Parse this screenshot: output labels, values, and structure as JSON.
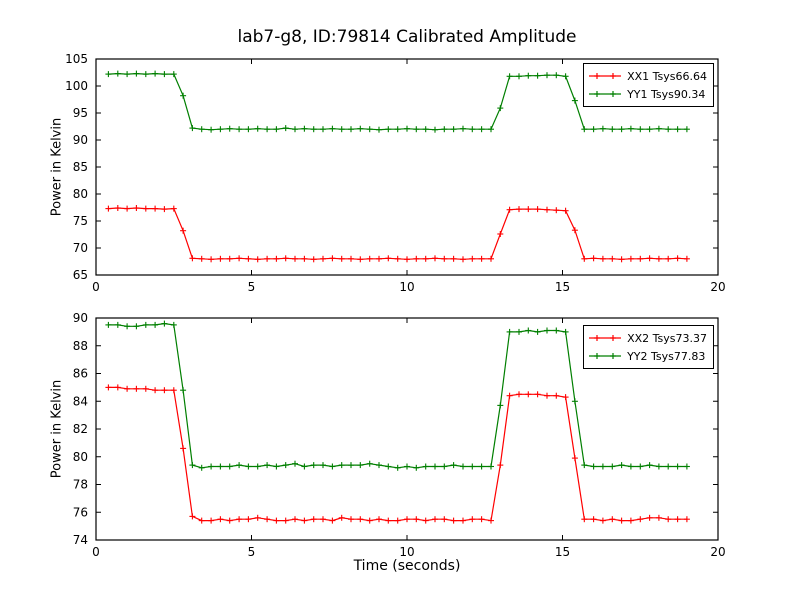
{
  "title": "lab7-g8, ID:79814 Calibrated Amplitude",
  "colors": {
    "red": "#ff0000",
    "green": "#007f00",
    "frame": "#000000",
    "background": "#ffffff"
  },
  "chart_data": [
    {
      "type": "line",
      "subplot": "top",
      "ylabel": "Power in Kelvin",
      "xlabel": "",
      "xlim": [
        0,
        20
      ],
      "ylim": [
        65,
        105
      ],
      "xticks": [
        0,
        5,
        10,
        15,
        20
      ],
      "yticks": [
        65,
        70,
        75,
        80,
        85,
        90,
        95,
        100,
        105
      ],
      "grid": false,
      "legend_position": "upper right",
      "x": [
        0.4,
        0.7,
        1.0,
        1.3,
        1.6,
        1.9,
        2.2,
        2.5,
        2.8,
        3.1,
        3.4,
        3.7,
        4.0,
        4.3,
        4.6,
        4.9,
        5.2,
        5.5,
        5.8,
        6.1,
        6.4,
        6.7,
        7.0,
        7.3,
        7.6,
        7.9,
        8.2,
        8.5,
        8.8,
        9.1,
        9.4,
        9.7,
        10.0,
        10.3,
        10.6,
        10.9,
        11.2,
        11.5,
        11.8,
        12.1,
        12.4,
        12.7,
        13.0,
        13.3,
        13.6,
        13.9,
        14.2,
        14.5,
        14.8,
        15.1,
        15.4,
        15.7,
        16.0,
        16.3,
        16.6,
        16.9,
        17.2,
        17.5,
        17.8,
        18.1,
        18.4,
        18.7,
        19.0
      ],
      "series": [
        {
          "name": "XX1",
          "label": "XX1 Tsys66.64",
          "color": "#ff0000",
          "marker": "+",
          "values": [
            77.3,
            77.4,
            77.3,
            77.4,
            77.3,
            77.3,
            77.2,
            77.3,
            73.2,
            68.1,
            68.0,
            67.9,
            68.0,
            68.0,
            68.1,
            68.0,
            67.9,
            68.0,
            68.0,
            68.1,
            68.0,
            68.0,
            67.9,
            68.0,
            68.1,
            68.0,
            68.0,
            67.9,
            68.0,
            68.0,
            68.1,
            68.0,
            67.9,
            68.0,
            68.0,
            68.1,
            68.0,
            68.0,
            67.9,
            68.0,
            68.0,
            68.0,
            72.6,
            77.1,
            77.2,
            77.2,
            77.2,
            77.1,
            77.0,
            76.9,
            73.3,
            68.0,
            68.1,
            68.0,
            68.0,
            67.9,
            68.0,
            68.0,
            68.1,
            68.0,
            68.0,
            68.1,
            68.0
          ]
        },
        {
          "name": "YY1",
          "label": "YY1 Tsys90.34",
          "color": "#007f00",
          "marker": "+",
          "values": [
            102.2,
            102.3,
            102.2,
            102.3,
            102.2,
            102.3,
            102.2,
            102.2,
            98.2,
            92.2,
            92.0,
            91.9,
            92.0,
            92.1,
            92.0,
            92.0,
            92.1,
            92.0,
            92.0,
            92.2,
            92.0,
            92.1,
            92.0,
            92.0,
            92.1,
            92.0,
            92.0,
            92.1,
            92.0,
            91.9,
            92.0,
            92.0,
            92.1,
            92.0,
            92.0,
            91.9,
            92.0,
            92.0,
            92.1,
            92.0,
            92.0,
            92.0,
            95.9,
            101.8,
            101.8,
            101.9,
            101.9,
            102.0,
            102.0,
            101.8,
            97.3,
            92.0,
            92.0,
            92.1,
            92.0,
            92.0,
            92.1,
            92.0,
            92.0,
            92.1,
            92.0,
            92.0,
            92.0
          ]
        }
      ]
    },
    {
      "type": "line",
      "subplot": "bottom",
      "ylabel": "Power in Kelvin",
      "xlabel": "Time (seconds)",
      "xlim": [
        0,
        20
      ],
      "ylim": [
        74,
        90
      ],
      "xticks": [
        0,
        5,
        10,
        15,
        20
      ],
      "yticks": [
        74,
        76,
        78,
        80,
        82,
        84,
        86,
        88,
        90
      ],
      "grid": false,
      "legend_position": "upper right",
      "x": [
        0.4,
        0.7,
        1.0,
        1.3,
        1.6,
        1.9,
        2.2,
        2.5,
        2.8,
        3.1,
        3.4,
        3.7,
        4.0,
        4.3,
        4.6,
        4.9,
        5.2,
        5.5,
        5.8,
        6.1,
        6.4,
        6.7,
        7.0,
        7.3,
        7.6,
        7.9,
        8.2,
        8.5,
        8.8,
        9.1,
        9.4,
        9.7,
        10.0,
        10.3,
        10.6,
        10.9,
        11.2,
        11.5,
        11.8,
        12.1,
        12.4,
        12.7,
        13.0,
        13.3,
        13.6,
        13.9,
        14.2,
        14.5,
        14.8,
        15.1,
        15.4,
        15.7,
        16.0,
        16.3,
        16.6,
        16.9,
        17.2,
        17.5,
        17.8,
        18.1,
        18.4,
        18.7,
        19.0
      ],
      "series": [
        {
          "name": "XX2",
          "label": "XX2 Tsys73.37",
          "color": "#ff0000",
          "marker": "+",
          "values": [
            85.0,
            85.0,
            84.9,
            84.9,
            84.9,
            84.8,
            84.8,
            84.8,
            80.6,
            75.7,
            75.4,
            75.4,
            75.5,
            75.4,
            75.5,
            75.5,
            75.6,
            75.5,
            75.4,
            75.4,
            75.5,
            75.4,
            75.5,
            75.5,
            75.4,
            75.6,
            75.5,
            75.5,
            75.4,
            75.5,
            75.4,
            75.4,
            75.5,
            75.5,
            75.4,
            75.5,
            75.5,
            75.4,
            75.4,
            75.5,
            75.5,
            75.4,
            79.4,
            84.4,
            84.5,
            84.5,
            84.5,
            84.4,
            84.4,
            84.3,
            79.9,
            75.5,
            75.5,
            75.4,
            75.5,
            75.4,
            75.4,
            75.5,
            75.6,
            75.6,
            75.5,
            75.5,
            75.5
          ]
        },
        {
          "name": "YY2",
          "label": "YY2 Tsys77.83",
          "color": "#007f00",
          "marker": "+",
          "values": [
            89.5,
            89.5,
            89.4,
            89.4,
            89.5,
            89.5,
            89.6,
            89.5,
            84.8,
            79.4,
            79.2,
            79.3,
            79.3,
            79.3,
            79.4,
            79.3,
            79.3,
            79.4,
            79.3,
            79.4,
            79.5,
            79.3,
            79.4,
            79.4,
            79.3,
            79.4,
            79.4,
            79.4,
            79.5,
            79.4,
            79.3,
            79.2,
            79.3,
            79.2,
            79.3,
            79.3,
            79.3,
            79.4,
            79.3,
            79.3,
            79.3,
            79.3,
            83.7,
            89.0,
            89.0,
            89.1,
            89.0,
            89.1,
            89.1,
            89.0,
            84.0,
            79.4,
            79.3,
            79.3,
            79.3,
            79.4,
            79.3,
            79.3,
            79.4,
            79.3,
            79.3,
            79.3,
            79.3
          ]
        }
      ]
    }
  ]
}
